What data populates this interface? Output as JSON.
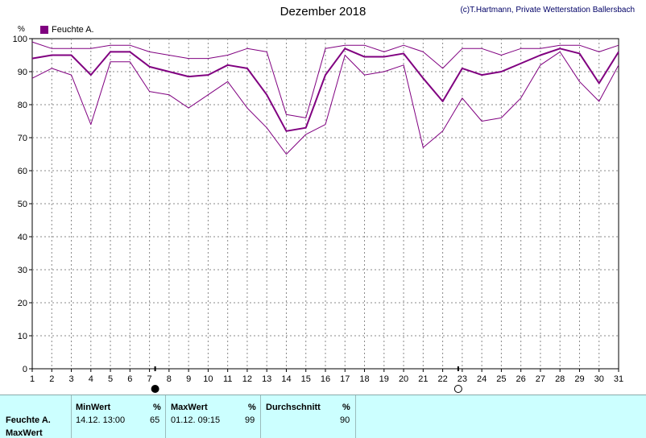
{
  "credit": "(c)T.Hartmann, Private Wetterstation Ballersbach",
  "colors": {
    "series": "#800080",
    "grid": "#888888"
  },
  "chart_data": {
    "type": "line",
    "title": "Dezember 2018",
    "ylabel": "%",
    "ylim": [
      0,
      100
    ],
    "yticks": [
      0,
      10,
      20,
      30,
      40,
      50,
      60,
      70,
      80,
      90,
      100
    ],
    "x": [
      1,
      2,
      3,
      4,
      5,
      6,
      7,
      8,
      9,
      10,
      11,
      12,
      13,
      14,
      15,
      16,
      17,
      18,
      19,
      20,
      21,
      22,
      23,
      24,
      25,
      26,
      27,
      28,
      29,
      30,
      31
    ],
    "legend": "Feuchte A.",
    "legend_position": "top-left",
    "grid": true,
    "series": [
      {
        "role": "max",
        "values": [
          99,
          97,
          97,
          97,
          98,
          98,
          96,
          95,
          94,
          94,
          95,
          97,
          96,
          77,
          76,
          97,
          98,
          98,
          96,
          98,
          96,
          91,
          97,
          97,
          95,
          97,
          97,
          98,
          98,
          96,
          98
        ]
      },
      {
        "role": "mean",
        "values": [
          94,
          95,
          95,
          89,
          96,
          96,
          91.5,
          90,
          88.5,
          89,
          92,
          91,
          83,
          72,
          73,
          89,
          97,
          94.5,
          94.5,
          95.5,
          88,
          81,
          91,
          89,
          90,
          92.5,
          95,
          97,
          95.5,
          86.5,
          96
        ]
      },
      {
        "role": "min",
        "values": [
          88,
          91,
          89,
          74,
          93,
          93,
          84,
          83,
          79,
          83,
          87,
          79,
          73,
          65,
          71,
          74,
          95,
          89,
          90,
          92,
          67,
          72,
          82,
          75,
          76,
          82,
          92,
          96,
          87,
          81,
          92
        ]
      }
    ]
  },
  "table": {
    "headers": {
      "min": "MinWert",
      "max": "MaxWert",
      "avg": "Durchschnitt",
      "unit": "%"
    },
    "row_labels": [
      "Feuchte A.",
      "MaxWert"
    ],
    "min_time": "14.12.  13:00",
    "min_value": "65",
    "max_time": "01.12.  09:15",
    "max_value": "99",
    "avg_value": "90"
  }
}
